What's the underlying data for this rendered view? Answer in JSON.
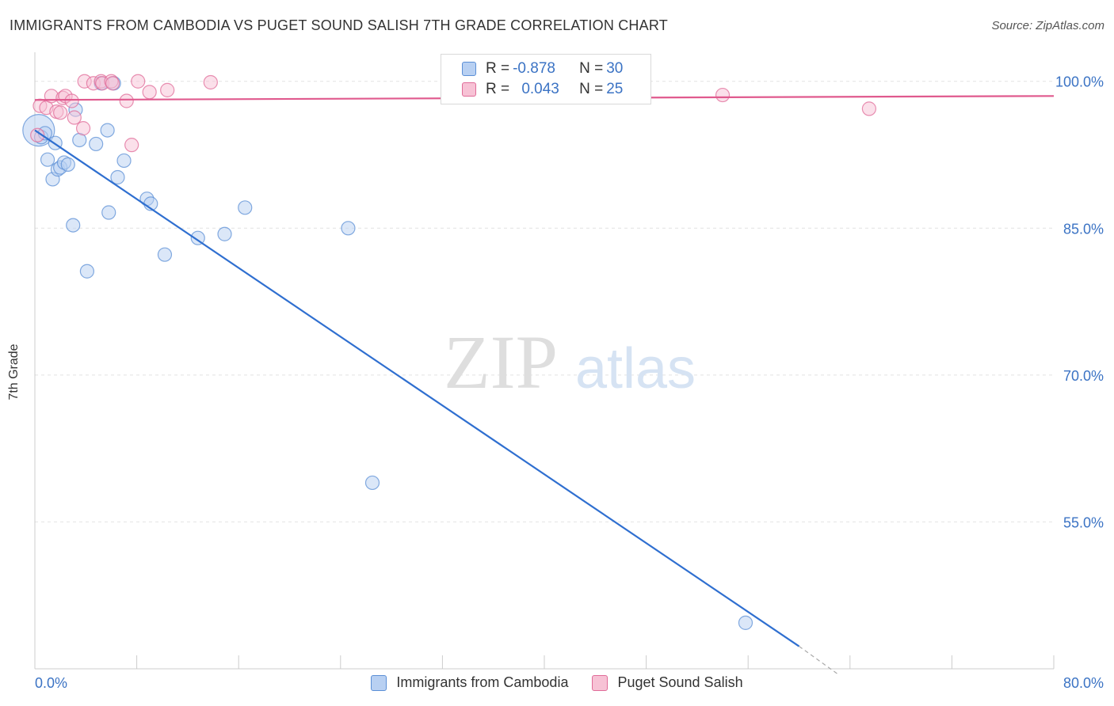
{
  "chart_data": {
    "type": "scatter",
    "title": "IMMIGRANTS FROM CAMBODIA VS PUGET SOUND SALISH 7TH GRADE CORRELATION CHART",
    "source": "Source: ZipAtlas.com",
    "ylabel": "7th Grade",
    "xlabel": "",
    "xlim": [
      0,
      80
    ],
    "ylim": [
      40,
      102
    ],
    "x_tick_labels": [
      "0.0%",
      "80.0%"
    ],
    "y_ticks": [
      {
        "value": 100,
        "label": "100.0%"
      },
      {
        "value": 85,
        "label": "85.0%"
      },
      {
        "value": 70,
        "label": "70.0%"
      },
      {
        "value": 55,
        "label": "55.0%"
      }
    ],
    "watermark": {
      "zip": "ZIP",
      "atlas": "atlas"
    },
    "series": [
      {
        "name": "Immigrants from Cambodia",
        "color": "#5b8fd6",
        "fill": "#b8d0f2",
        "r_label": "R = ",
        "r_value": "-0.878",
        "n_label": "N = ",
        "n_value": "30",
        "points": [
          [
            0.3,
            95.0
          ],
          [
            0.5,
            94.3
          ],
          [
            0.8,
            94.7
          ],
          [
            1.0,
            92.0
          ],
          [
            1.4,
            90.0
          ],
          [
            1.6,
            93.7
          ],
          [
            1.8,
            91.0
          ],
          [
            2.0,
            91.2
          ],
          [
            2.3,
            91.7
          ],
          [
            2.6,
            91.5
          ],
          [
            3.0,
            85.3
          ],
          [
            3.2,
            97.1
          ],
          [
            3.5,
            94.0
          ],
          [
            4.1,
            80.6
          ],
          [
            4.8,
            93.6
          ],
          [
            5.2,
            99.8
          ],
          [
            5.7,
            95.0
          ],
          [
            5.8,
            86.6
          ],
          [
            6.2,
            99.8
          ],
          [
            6.5,
            90.2
          ],
          [
            7.0,
            91.9
          ],
          [
            8.8,
            88.0
          ],
          [
            9.1,
            87.5
          ],
          [
            10.2,
            82.3
          ],
          [
            12.8,
            84.0
          ],
          [
            14.9,
            84.4
          ],
          [
            16.5,
            87.1
          ],
          [
            24.6,
            85.0
          ],
          [
            26.5,
            59.0
          ],
          [
            55.8,
            44.7
          ]
        ],
        "trend": {
          "x0": 0,
          "y0": 95.0,
          "x1": 60,
          "y1": 42.3,
          "dash_to_x": 63.0,
          "dash_to_y": 39.5
        }
      },
      {
        "name": "Puget Sound Salish",
        "color": "#e06b98",
        "fill": "#f7c2d5",
        "r_label": "R = ",
        "r_value": "0.043",
        "n_label": "N = ",
        "n_value": "25",
        "points": [
          [
            0.2,
            94.5
          ],
          [
            0.4,
            97.5
          ],
          [
            0.9,
            97.3
          ],
          [
            1.3,
            98.5
          ],
          [
            1.7,
            96.9
          ],
          [
            2.0,
            96.8
          ],
          [
            2.2,
            98.3
          ],
          [
            2.4,
            98.5
          ],
          [
            2.9,
            98.0
          ],
          [
            3.1,
            96.3
          ],
          [
            3.8,
            95.2
          ],
          [
            3.9,
            100.0
          ],
          [
            4.6,
            99.8
          ],
          [
            5.2,
            100.0
          ],
          [
            5.3,
            99.8
          ],
          [
            6.0,
            100.0
          ],
          [
            6.1,
            99.8
          ],
          [
            7.2,
            98.0
          ],
          [
            7.6,
            93.5
          ],
          [
            8.1,
            100.0
          ],
          [
            9.0,
            98.9
          ],
          [
            10.4,
            99.1
          ],
          [
            13.8,
            99.9
          ],
          [
            54.0,
            98.6
          ],
          [
            65.5,
            97.2
          ]
        ],
        "trend": {
          "x0": 0,
          "y0": 98.1,
          "x1": 80,
          "y1": 98.5
        }
      }
    ]
  }
}
